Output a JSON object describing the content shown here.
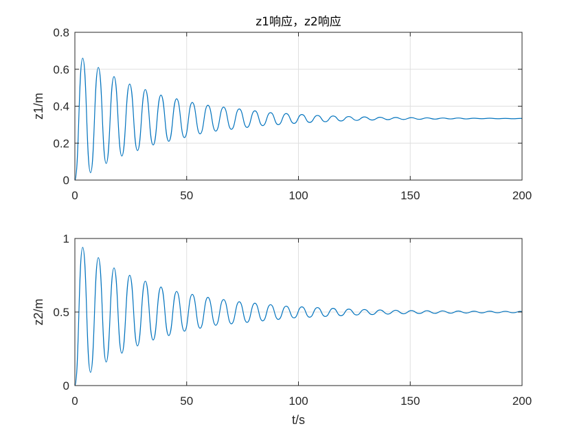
{
  "chart_data": [
    {
      "type": "line",
      "title": "z1响应，z2响应",
      "xlabel": "",
      "ylabel": "z1/m",
      "xlim": [
        0,
        200
      ],
      "ylim": [
        0,
        0.8
      ],
      "xticks": [
        0,
        50,
        100,
        150,
        200
      ],
      "xtick_labels": [
        "0",
        "50",
        "100",
        "150",
        "200"
      ],
      "yticks": [
        0,
        0.2,
        0.4,
        0.6,
        0.8
      ],
      "ytick_labels": [
        "0",
        "0.2",
        "0.4",
        "0.6",
        "0.8"
      ],
      "grid": true,
      "color": "#0072bd",
      "series": [
        {
          "x": [
            0,
            3.5,
            7.0,
            10.5,
            14.0,
            17.5,
            21.0,
            24.5,
            28.0,
            31.5,
            35.0,
            38.5,
            42.0,
            45.5,
            49.0,
            52.5,
            56.0,
            59.5,
            63.0,
            66.5,
            70.0,
            73.5,
            77.0,
            80.5,
            84.0,
            87.5,
            91.0,
            94.5,
            98.0,
            101.5,
            105.0,
            108.5,
            112.0,
            115.5,
            119.0,
            122.5,
            126.0,
            129.5,
            133.0,
            136.5,
            140.0,
            143.5,
            147.0,
            150.5,
            154.0,
            157.5,
            161.0,
            164.5,
            168.0,
            171.5,
            175.0,
            178.5,
            182.0,
            185.5,
            189.0,
            192.5,
            196.0,
            199.5,
            200
          ],
          "y": [
            0,
            0.66,
            0.04,
            0.61,
            0.09,
            0.56,
            0.13,
            0.52,
            0.16,
            0.49,
            0.19,
            0.46,
            0.21,
            0.44,
            0.23,
            0.42,
            0.25,
            0.405,
            0.265,
            0.395,
            0.275,
            0.385,
            0.285,
            0.375,
            0.295,
            0.365,
            0.3,
            0.36,
            0.307,
            0.355,
            0.312,
            0.35,
            0.316,
            0.347,
            0.32,
            0.344,
            0.323,
            0.342,
            0.325,
            0.34,
            0.327,
            0.339,
            0.328,
            0.338,
            0.329,
            0.337,
            0.33,
            0.336,
            0.331,
            0.336,
            0.331,
            0.335,
            0.332,
            0.335,
            0.332,
            0.334,
            0.332,
            0.334,
            0.333
          ]
        }
      ]
    },
    {
      "type": "line",
      "title": "",
      "xlabel": "t/s",
      "ylabel": "z2/m",
      "xlim": [
        0,
        200
      ],
      "ylim": [
        0,
        1
      ],
      "xticks": [
        0,
        50,
        100,
        150,
        200
      ],
      "xtick_labels": [
        "0",
        "50",
        "100",
        "150",
        "200"
      ],
      "yticks": [
        0,
        0.5,
        1
      ],
      "ytick_labels": [
        "0",
        "0.5",
        "1"
      ],
      "grid": true,
      "color": "#0072bd",
      "series": [
        {
          "x": [
            0,
            3.5,
            7.0,
            10.5,
            14.0,
            17.5,
            21.0,
            24.5,
            28.0,
            31.5,
            35.0,
            38.5,
            42.0,
            45.5,
            49.0,
            52.5,
            56.0,
            59.5,
            63.0,
            66.5,
            70.0,
            73.5,
            77.0,
            80.5,
            84.0,
            87.5,
            91.0,
            94.5,
            98.0,
            101.5,
            105.0,
            108.5,
            112.0,
            115.5,
            119.0,
            122.5,
            126.0,
            129.5,
            133.0,
            136.5,
            140.0,
            143.5,
            147.0,
            150.5,
            154.0,
            157.5,
            161.0,
            164.5,
            168.0,
            171.5,
            175.0,
            178.5,
            182.0,
            185.5,
            189.0,
            192.5,
            196.0,
            199.5,
            200
          ],
          "y": [
            0,
            0.94,
            0.09,
            0.87,
            0.16,
            0.8,
            0.22,
            0.75,
            0.27,
            0.71,
            0.31,
            0.67,
            0.34,
            0.64,
            0.37,
            0.62,
            0.39,
            0.6,
            0.41,
            0.585,
            0.42,
            0.57,
            0.43,
            0.56,
            0.44,
            0.55,
            0.45,
            0.54,
            0.46,
            0.535,
            0.465,
            0.53,
            0.47,
            0.525,
            0.475,
            0.52,
            0.48,
            0.517,
            0.483,
            0.514,
            0.486,
            0.512,
            0.488,
            0.51,
            0.49,
            0.509,
            0.491,
            0.508,
            0.492,
            0.507,
            0.493,
            0.506,
            0.494,
            0.506,
            0.495,
            0.505,
            0.495,
            0.505,
            0.5
          ]
        }
      ]
    }
  ]
}
